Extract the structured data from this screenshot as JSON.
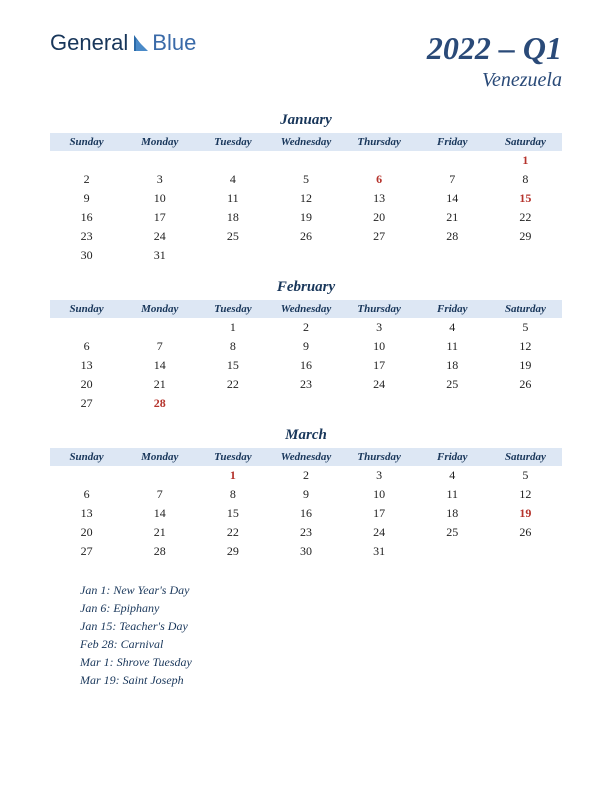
{
  "logo": {
    "part1": "General",
    "part2": "Blue"
  },
  "header": {
    "quarter": "2022 – Q1",
    "country": "Venezuela"
  },
  "weekdays": [
    "Sunday",
    "Monday",
    "Tuesday",
    "Wednesday",
    "Thursday",
    "Friday",
    "Saturday"
  ],
  "months": [
    {
      "name": "January",
      "weeks": [
        [
          null,
          null,
          null,
          null,
          null,
          null,
          {
            "d": 1,
            "h": true
          }
        ],
        [
          {
            "d": 2
          },
          {
            "d": 3
          },
          {
            "d": 4
          },
          {
            "d": 5
          },
          {
            "d": 6,
            "h": true
          },
          {
            "d": 7
          },
          {
            "d": 8
          }
        ],
        [
          {
            "d": 9
          },
          {
            "d": 10
          },
          {
            "d": 11
          },
          {
            "d": 12
          },
          {
            "d": 13
          },
          {
            "d": 14
          },
          {
            "d": 15,
            "h": true
          }
        ],
        [
          {
            "d": 16
          },
          {
            "d": 17
          },
          {
            "d": 18
          },
          {
            "d": 19
          },
          {
            "d": 20
          },
          {
            "d": 21
          },
          {
            "d": 22
          }
        ],
        [
          {
            "d": 23
          },
          {
            "d": 24
          },
          {
            "d": 25
          },
          {
            "d": 26
          },
          {
            "d": 27
          },
          {
            "d": 28
          },
          {
            "d": 29
          }
        ],
        [
          {
            "d": 30
          },
          {
            "d": 31
          },
          null,
          null,
          null,
          null,
          null
        ]
      ]
    },
    {
      "name": "February",
      "weeks": [
        [
          null,
          null,
          {
            "d": 1
          },
          {
            "d": 2
          },
          {
            "d": 3
          },
          {
            "d": 4
          },
          {
            "d": 5
          }
        ],
        [
          {
            "d": 6
          },
          {
            "d": 7
          },
          {
            "d": 8
          },
          {
            "d": 9
          },
          {
            "d": 10
          },
          {
            "d": 11
          },
          {
            "d": 12
          }
        ],
        [
          {
            "d": 13
          },
          {
            "d": 14
          },
          {
            "d": 15
          },
          {
            "d": 16
          },
          {
            "d": 17
          },
          {
            "d": 18
          },
          {
            "d": 19
          }
        ],
        [
          {
            "d": 20
          },
          {
            "d": 21
          },
          {
            "d": 22
          },
          {
            "d": 23
          },
          {
            "d": 24
          },
          {
            "d": 25
          },
          {
            "d": 26
          }
        ],
        [
          {
            "d": 27
          },
          {
            "d": 28,
            "h": true
          },
          null,
          null,
          null,
          null,
          null
        ]
      ]
    },
    {
      "name": "March",
      "weeks": [
        [
          null,
          null,
          {
            "d": 1,
            "h": true
          },
          {
            "d": 2
          },
          {
            "d": 3
          },
          {
            "d": 4
          },
          {
            "d": 5
          }
        ],
        [
          {
            "d": 6
          },
          {
            "d": 7
          },
          {
            "d": 8
          },
          {
            "d": 9
          },
          {
            "d": 10
          },
          {
            "d": 11
          },
          {
            "d": 12
          }
        ],
        [
          {
            "d": 13
          },
          {
            "d": 14
          },
          {
            "d": 15
          },
          {
            "d": 16
          },
          {
            "d": 17
          },
          {
            "d": 18
          },
          {
            "d": 19,
            "h": true
          }
        ],
        [
          {
            "d": 20
          },
          {
            "d": 21
          },
          {
            "d": 22
          },
          {
            "d": 23
          },
          {
            "d": 24
          },
          {
            "d": 25
          },
          {
            "d": 26
          }
        ],
        [
          {
            "d": 27
          },
          {
            "d": 28
          },
          {
            "d": 29
          },
          {
            "d": 30
          },
          {
            "d": 31
          },
          null,
          null
        ]
      ]
    }
  ],
  "holidays": [
    "Jan 1: New Year's Day",
    "Jan 6: Epiphany",
    "Jan 15: Teacher's Day",
    "Feb 28: Carnival",
    "Mar 1: Shrove Tuesday",
    "Mar 19: Saint Joseph"
  ],
  "colors": {
    "header_bg": "#dde7f4",
    "text_dark": "#18365a",
    "holiday_red": "#b5332c"
  }
}
